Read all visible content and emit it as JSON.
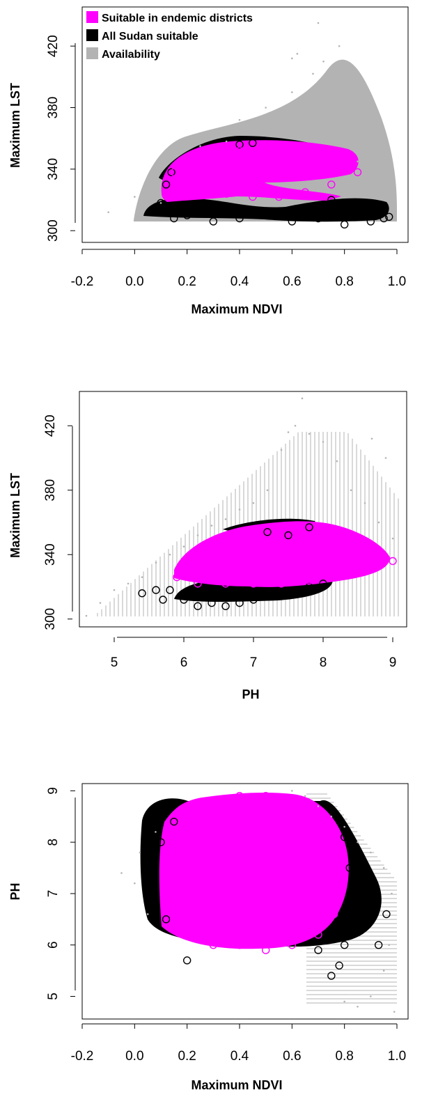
{
  "chart_data": [
    {
      "type": "scatter",
      "xlabel": "Maximum NDVI",
      "ylabel": "Maximum LST",
      "xlim": [
        -0.2,
        1.0
      ],
      "ylim": [
        296,
        440
      ],
      "xticks": [
        "-0.2",
        "0.0",
        "0.2",
        "0.4",
        "0.6",
        "0.8",
        "1.0"
      ],
      "yticks": [
        "300",
        "340",
        "380",
        "420"
      ],
      "legend": {
        "placement": "top-left",
        "entries": [
          {
            "label": "Suitable in endemic districts",
            "color": "#ff00ff"
          },
          {
            "label": "All Sudan suitable",
            "color": "#000000"
          },
          {
            "label": "Availability",
            "color": "#b3b3b3"
          }
        ]
      },
      "series": [
        {
          "name": "Availability",
          "color": "#b3b3b3",
          "points": [
            [
              -0.1,
              312
            ],
            [
              0.0,
              322
            ],
            [
              0.05,
              330
            ],
            [
              0.1,
              318
            ],
            [
              0.15,
              352
            ],
            [
              0.2,
              360
            ],
            [
              0.25,
              355
            ],
            [
              0.3,
              362
            ],
            [
              0.35,
              358
            ],
            [
              0.4,
              372
            ],
            [
              0.45,
              370
            ],
            [
              0.5,
              380
            ],
            [
              0.55,
              365
            ],
            [
              0.6,
              390
            ],
            [
              0.65,
              384
            ],
            [
              0.7,
              395
            ],
            [
              0.75,
              372
            ],
            [
              0.8,
              360
            ],
            [
              0.85,
              345
            ],
            [
              0.9,
              338
            ],
            [
              0.95,
              325
            ],
            [
              0.98,
              315
            ],
            [
              0.68,
              402
            ],
            [
              0.72,
              410
            ],
            [
              0.62,
              415
            ],
            [
              0.78,
              420
            ],
            [
              0.7,
              435
            ],
            [
              0.6,
              412
            ],
            [
              0.76,
              388
            ],
            [
              0.82,
              392
            ]
          ]
        },
        {
          "name": "All Sudan suitable",
          "color": "#000000",
          "points": [
            [
              0.06,
              312
            ],
            [
              0.1,
              318
            ],
            [
              0.15,
              308
            ],
            [
              0.2,
              310
            ],
            [
              0.3,
              306
            ],
            [
              0.4,
              308
            ],
            [
              0.5,
              312
            ],
            [
              0.6,
              306
            ],
            [
              0.7,
              308
            ],
            [
              0.8,
              304
            ],
            [
              0.85,
              314
            ],
            [
              0.9,
              306
            ],
            [
              0.95,
              308
            ],
            [
              0.97,
              309
            ],
            [
              0.4,
              356
            ],
            [
              0.45,
              357
            ],
            [
              0.12,
              330
            ],
            [
              0.14,
              338
            ],
            [
              0.75,
              320
            ],
            [
              0.88,
              318
            ]
          ]
        },
        {
          "name": "Suitable in endemic districts",
          "color": "#ff00ff",
          "points": [
            [
              0.15,
              338
            ],
            [
              0.2,
              344
            ],
            [
              0.3,
              350
            ],
            [
              0.4,
              352
            ],
            [
              0.5,
              353
            ],
            [
              0.6,
              350
            ],
            [
              0.7,
              346
            ],
            [
              0.8,
              340
            ],
            [
              0.85,
              338
            ],
            [
              0.75,
              330
            ],
            [
              0.65,
              325
            ],
            [
              0.55,
              322
            ],
            [
              0.45,
              322
            ],
            [
              0.35,
              324
            ],
            [
              0.25,
              326
            ],
            [
              0.18,
              330
            ],
            [
              0.5,
              335
            ]
          ]
        }
      ]
    },
    {
      "type": "scatter",
      "xlabel": "PH",
      "ylabel": "Maximum LST",
      "xlim": [
        4.5,
        9.2
      ],
      "ylim": [
        296,
        440
      ],
      "xticks": [
        "5",
        "6",
        "7",
        "8",
        "9"
      ],
      "yticks": [
        "300",
        "340",
        "380",
        "420"
      ],
      "series": [
        {
          "name": "Availability",
          "color": "#b3b3b3",
          "points": [
            [
              4.6,
              302
            ],
            [
              4.8,
              310
            ],
            [
              5.0,
              318
            ],
            [
              5.2,
              322
            ],
            [
              5.4,
              326
            ],
            [
              5.6,
              335
            ],
            [
              5.8,
              340
            ],
            [
              6.0,
              345
            ],
            [
              6.2,
              352
            ],
            [
              6.4,
              358
            ],
            [
              6.6,
              362
            ],
            [
              6.8,
              368
            ],
            [
              7.0,
              372
            ],
            [
              7.2,
              380
            ],
            [
              7.4,
              405
            ],
            [
              7.6,
              420
            ],
            [
              7.8,
              415
            ],
            [
              8.0,
              410
            ],
            [
              8.2,
              398
            ],
            [
              8.4,
              380
            ],
            [
              8.6,
              372
            ],
            [
              8.8,
              360
            ],
            [
              9.0,
              350
            ],
            [
              7.7,
              437
            ],
            [
              7.5,
              416
            ],
            [
              8.7,
              412
            ],
            [
              8.9,
              400
            ]
          ]
        },
        {
          "name": "All Sudan suitable",
          "color": "#000000",
          "points": [
            [
              5.4,
              316
            ],
            [
              5.6,
              318
            ],
            [
              5.7,
              312
            ],
            [
              5.8,
              318
            ],
            [
              6.0,
              312
            ],
            [
              6.2,
              308
            ],
            [
              6.4,
              310
            ],
            [
              6.6,
              308
            ],
            [
              6.8,
              310
            ],
            [
              7.0,
              312
            ],
            [
              7.2,
              314
            ],
            [
              7.4,
              316
            ],
            [
              7.6,
              318
            ],
            [
              7.8,
              320
            ],
            [
              8.0,
              322
            ],
            [
              7.8,
              357
            ],
            [
              7.5,
              352
            ],
            [
              7.2,
              354
            ]
          ]
        },
        {
          "name": "Suitable in endemic districts",
          "color": "#ff00ff",
          "points": [
            [
              5.9,
              326
            ],
            [
              6.0,
              330
            ],
            [
              6.2,
              336
            ],
            [
              6.5,
              340
            ],
            [
              6.8,
              344
            ],
            [
              7.0,
              346
            ],
            [
              7.3,
              348
            ],
            [
              7.6,
              350
            ],
            [
              7.9,
              352
            ],
            [
              8.2,
              346
            ],
            [
              8.5,
              342
            ],
            [
              8.8,
              338
            ],
            [
              9.0,
              336
            ],
            [
              8.6,
              330
            ],
            [
              8.2,
              326
            ],
            [
              7.8,
              324
            ],
            [
              7.4,
              322
            ],
            [
              7.0,
              322
            ],
            [
              6.6,
              322
            ],
            [
              6.2,
              322
            ]
          ]
        }
      ]
    },
    {
      "type": "scatter",
      "xlabel": "Maximum NDVI",
      "ylabel": "PH",
      "xlim": [
        -0.2,
        1.0
      ],
      "ylim": [
        4.6,
        9.1
      ],
      "xticks": [
        "-0.2",
        "0.0",
        "0.2",
        "0.4",
        "0.6",
        "0.8",
        "1.0"
      ],
      "yticks": [
        "5",
        "6",
        "7",
        "8",
        "9"
      ],
      "series": [
        {
          "name": "Availability",
          "color": "#b3b3b3",
          "points": [
            [
              -0.05,
              7.4
            ],
            [
              0.0,
              7.2
            ],
            [
              0.02,
              7.8
            ],
            [
              0.05,
              6.6
            ],
            [
              0.08,
              8.2
            ],
            [
              0.6,
              9.0
            ],
            [
              0.65,
              8.9
            ],
            [
              0.7,
              8.7
            ],
            [
              0.75,
              8.5
            ],
            [
              0.8,
              8.3
            ],
            [
              0.85,
              8.0
            ],
            [
              0.9,
              7.8
            ],
            [
              0.95,
              7.5
            ],
            [
              0.98,
              7.0
            ],
            [
              0.97,
              6.0
            ],
            [
              0.95,
              5.5
            ],
            [
              0.9,
              5.0
            ],
            [
              0.85,
              4.8
            ],
            [
              0.99,
              4.7
            ],
            [
              0.8,
              4.9
            ]
          ]
        },
        {
          "name": "All Sudan suitable",
          "color": "#000000",
          "points": [
            [
              0.06,
              7.3
            ],
            [
              0.08,
              7.8
            ],
            [
              0.1,
              8.0
            ],
            [
              0.12,
              6.5
            ],
            [
              0.15,
              8.4
            ],
            [
              0.2,
              5.7
            ],
            [
              0.7,
              5.9
            ],
            [
              0.75,
              5.4
            ],
            [
              0.78,
              5.6
            ],
            [
              0.8,
              6.0
            ],
            [
              0.85,
              6.3
            ],
            [
              0.9,
              6.5
            ],
            [
              0.93,
              6.0
            ],
            [
              0.96,
              6.6
            ],
            [
              0.88,
              7.0
            ],
            [
              0.82,
              7.5
            ],
            [
              0.8,
              8.1
            ]
          ]
        },
        {
          "name": "Suitable in endemic districts",
          "color": "#ff00ff",
          "points": [
            [
              0.13,
              7.0
            ],
            [
              0.15,
              7.8
            ],
            [
              0.2,
              8.3
            ],
            [
              0.25,
              8.6
            ],
            [
              0.3,
              8.8
            ],
            [
              0.4,
              8.9
            ],
            [
              0.5,
              8.9
            ],
            [
              0.6,
              8.6
            ],
            [
              0.7,
              8.3
            ],
            [
              0.75,
              7.8
            ],
            [
              0.78,
              7.2
            ],
            [
              0.76,
              6.6
            ],
            [
              0.7,
              6.2
            ],
            [
              0.6,
              6.0
            ],
            [
              0.5,
              5.9
            ],
            [
              0.4,
              6.0
            ],
            [
              0.3,
              6.0
            ],
            [
              0.2,
              6.2
            ],
            [
              0.15,
              6.5
            ]
          ]
        }
      ]
    }
  ]
}
